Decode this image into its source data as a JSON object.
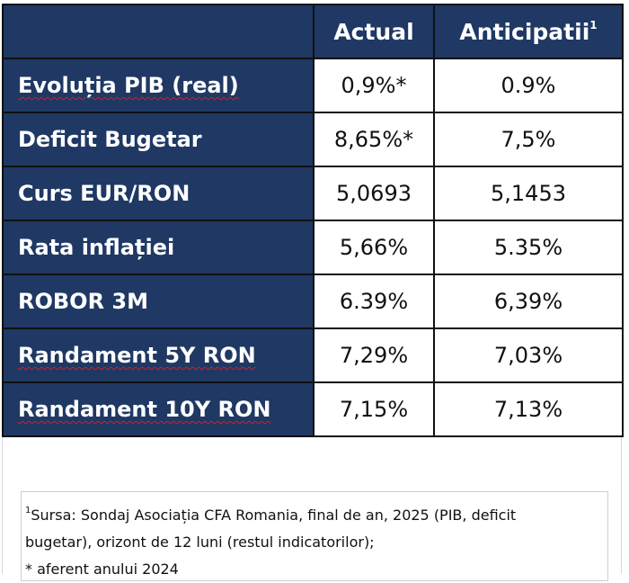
{
  "table": {
    "header": {
      "col1": "Actual",
      "col2": "Anticipatii",
      "col2_sup": "1"
    },
    "rows": [
      {
        "label": "Evoluția PIB (real)",
        "actual": "0,9%*",
        "anticipated": "0.9%"
      },
      {
        "label": "Deficit Bugetar",
        "actual": "8,65%*",
        "anticipated": "7,5%"
      },
      {
        "label": "Curs EUR/RON",
        "actual": "5,0693",
        "anticipated": "5,1453"
      },
      {
        "label": "Rata inflației",
        "actual": "5,66%",
        "anticipated": "5.35%"
      },
      {
        "label": "ROBOR 3M",
        "actual": "6.39%",
        "anticipated": "6,39%"
      },
      {
        "label": "Randament 5Y RON",
        "actual": "7,29%",
        "anticipated": "7,03%"
      },
      {
        "label": "Randament 10Y RON",
        "actual": "7,15%",
        "anticipated": "7,13%"
      }
    ]
  },
  "footnote": {
    "sup": "1",
    "line1": "Sursa: Sondaj Asociația CFA Romania, final de an, 2025 (PIB, deficit",
    "line2": "bugetar), orizont de 12 luni (restul indicatorilor);",
    "line3": "* aferent anului 2024"
  },
  "colors": {
    "header_bg": "#1f3864",
    "header_text": "#ffffff",
    "value_bg": "#ffffff"
  }
}
